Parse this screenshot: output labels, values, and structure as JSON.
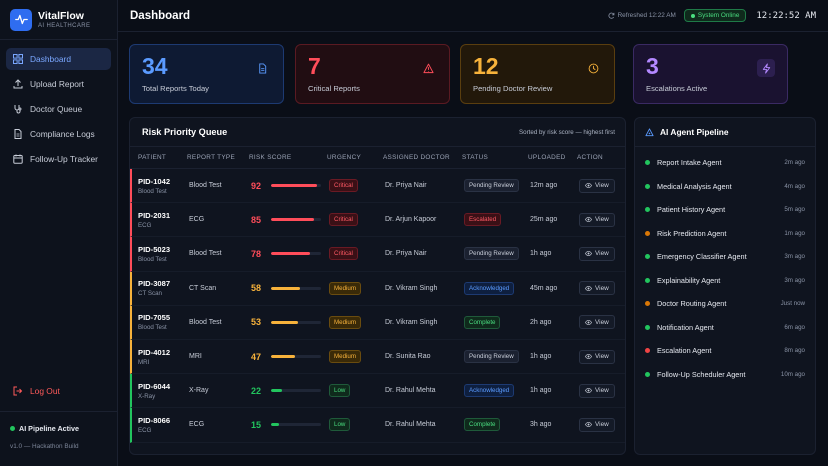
{
  "brand": {
    "name": "VitalFlow",
    "subtitle": "AI HEALTHCARE"
  },
  "sidebar": {
    "items": [
      {
        "label": "Dashboard",
        "icon": "grid-icon",
        "active": true
      },
      {
        "label": "Upload Report",
        "icon": "upload-icon",
        "active": false
      },
      {
        "label": "Doctor Queue",
        "icon": "stethoscope-icon",
        "active": false
      },
      {
        "label": "Compliance Logs",
        "icon": "file-icon",
        "active": false
      },
      {
        "label": "Follow-Up Tracker",
        "icon": "calendar-icon",
        "active": false
      }
    ],
    "logout_label": "Log Out",
    "footer": {
      "status": "AI Pipeline Active",
      "version": "v1.0 — Hackathon Build"
    }
  },
  "header": {
    "title": "Dashboard",
    "refreshed": "Refreshed 12:22 AM",
    "system_status": "System Online",
    "clock": "12:22:52 AM"
  },
  "stats": [
    {
      "value": "34",
      "label": "Total Reports Today",
      "icon": "document-icon",
      "color": "#5b9bff"
    },
    {
      "value": "7",
      "label": "Critical Reports",
      "icon": "warning-icon",
      "color": "#ff4d5a"
    },
    {
      "value": "12",
      "label": "Pending Doctor Review",
      "icon": "clock-icon",
      "color": "#f7b23b"
    },
    {
      "value": "3",
      "label": "Escalations Active",
      "icon": "lightning-icon",
      "color": "#b388ff"
    }
  ],
  "queue": {
    "title": "Risk Priority Queue",
    "sort_note": "Sorted by risk score — highest first",
    "columns": [
      "PATIENT",
      "REPORT TYPE",
      "RISK SCORE",
      "URGENCY",
      "ASSIGNED DOCTOR",
      "STATUS",
      "UPLOADED",
      "ACTION"
    ],
    "view_label": "View",
    "rows": [
      {
        "pid": "PID-1042",
        "sub": "Blood Test",
        "type": "Blood Test",
        "score": 92,
        "urgency": "Critical",
        "doctor": "Dr. Priya Nair",
        "status": "Pending Review",
        "uploaded": "12m ago"
      },
      {
        "pid": "PID-2031",
        "sub": "ECG",
        "type": "ECG",
        "score": 85,
        "urgency": "Critical",
        "doctor": "Dr. Arjun Kapoor",
        "status": "Escalated",
        "uploaded": "25m ago"
      },
      {
        "pid": "PID-5023",
        "sub": "Blood Test",
        "type": "Blood Test",
        "score": 78,
        "urgency": "Critical",
        "doctor": "Dr. Priya Nair",
        "status": "Pending Review",
        "uploaded": "1h ago"
      },
      {
        "pid": "PID-3087",
        "sub": "CT Scan",
        "type": "CT Scan",
        "score": 58,
        "urgency": "Medium",
        "doctor": "Dr. Vikram Singh",
        "status": "Acknowledged",
        "uploaded": "45m ago"
      },
      {
        "pid": "PID-7055",
        "sub": "Blood Test",
        "type": "Blood Test",
        "score": 53,
        "urgency": "Medium",
        "doctor": "Dr. Vikram Singh",
        "status": "Complete",
        "uploaded": "2h ago"
      },
      {
        "pid": "PID-4012",
        "sub": "MRI",
        "type": "MRI",
        "score": 47,
        "urgency": "Medium",
        "doctor": "Dr. Sunita Rao",
        "status": "Pending Review",
        "uploaded": "1h ago"
      },
      {
        "pid": "PID-6044",
        "sub": "X-Ray",
        "type": "X-Ray",
        "score": 22,
        "urgency": "Low",
        "doctor": "Dr. Rahul Mehta",
        "status": "Acknowledged",
        "uploaded": "1h ago"
      },
      {
        "pid": "PID-8066",
        "sub": "ECG",
        "type": "ECG",
        "score": 15,
        "urgency": "Low",
        "doctor": "Dr. Rahul Mehta",
        "status": "Complete",
        "uploaded": "3h ago"
      }
    ]
  },
  "pipeline": {
    "title": "AI Agent Pipeline",
    "agents": [
      {
        "name": "Report Intake Agent",
        "time": "2m ago",
        "state": "active"
      },
      {
        "name": "Medical Analysis Agent",
        "time": "4m ago",
        "state": "active"
      },
      {
        "name": "Patient History Agent",
        "time": "5m ago",
        "state": "active"
      },
      {
        "name": "Risk Prediction Agent",
        "time": "1m ago",
        "state": "processing"
      },
      {
        "name": "Emergency Classifier Agent",
        "time": "3m ago",
        "state": "active"
      },
      {
        "name": "Explainability Agent",
        "time": "3m ago",
        "state": "active"
      },
      {
        "name": "Doctor Routing Agent",
        "time": "Just now",
        "state": "processing"
      },
      {
        "name": "Notification Agent",
        "time": "6m ago",
        "state": "active"
      },
      {
        "name": "Escalation Agent",
        "time": "8m ago",
        "state": "alert"
      },
      {
        "name": "Follow-Up Scheduler Agent",
        "time": "10m ago",
        "state": "active"
      }
    ]
  },
  "colors": {
    "critical": "#ff4d5a",
    "medium": "#f7b23b",
    "low": "#22c55e",
    "accent": "#2f6df0",
    "active_dot": "#22c55e",
    "processing_dot": "#d97706",
    "alert_dot": "#ef4444"
  }
}
